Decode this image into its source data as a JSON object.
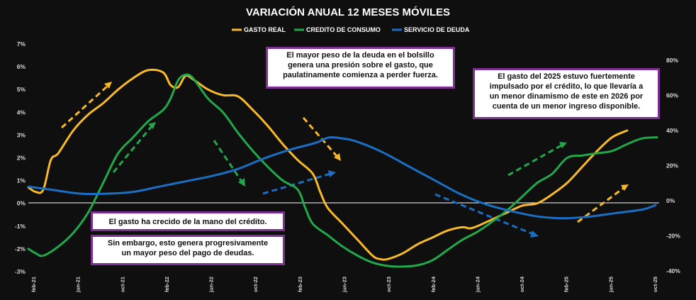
{
  "chart_data": {
    "type": "line",
    "title": "VARIACIÓN ANUAL 12 MESES MÓVILES",
    "legend": [
      {
        "name": "GASTO REAL",
        "color": "#f7b928"
      },
      {
        "name": "CREDITO DE CONSUMO",
        "color": "#22a84a"
      },
      {
        "name": "SERVICIO DE DEUDA",
        "color": "#1a6fc4"
      }
    ],
    "legend_position": "top-center",
    "x_ticks": [
      "feb-21",
      "jun-21",
      "oct-21",
      "feb-22",
      "jun-22",
      "oct-22",
      "feb-23",
      "jun-23",
      "oct-23",
      "feb-24",
      "jun-24",
      "oct-24",
      "feb-25",
      "jun-25",
      "oct-25"
    ],
    "x_months": 57,
    "y_left": {
      "ticks": [
        "7%",
        "6%",
        "5%",
        "4%",
        "3%",
        "2%",
        "1%",
        "0%",
        "-1%",
        "-2%",
        "-3%"
      ],
      "range": [
        -3,
        7
      ]
    },
    "y_right": {
      "ticks": [
        "80%",
        "60%",
        "40%",
        "20%",
        "0%",
        "-20%",
        "-40%"
      ],
      "range": [
        -40,
        80
      ]
    },
    "series": [
      {
        "name": "GASTO REAL",
        "axis": "left",
        "points": [
          [
            0,
            0.7
          ],
          [
            1,
            0.5
          ],
          [
            2,
            0.6
          ],
          [
            3,
            1.9
          ],
          [
            4,
            2.2
          ],
          [
            6,
            3.2
          ],
          [
            8,
            3.9
          ],
          [
            10,
            4.4
          ],
          [
            12,
            5.0
          ],
          [
            14,
            5.5
          ],
          [
            16,
            5.85
          ],
          [
            18,
            5.75
          ],
          [
            19,
            5.2
          ],
          [
            20,
            5.1
          ],
          [
            21,
            5.6
          ],
          [
            22,
            5.45
          ],
          [
            24,
            5.0
          ],
          [
            26,
            4.75
          ],
          [
            28,
            4.7
          ],
          [
            30,
            4.1
          ],
          [
            32,
            3.4
          ],
          [
            34,
            2.6
          ],
          [
            36,
            1.9
          ],
          [
            38,
            1.3
          ],
          [
            39,
            0.5
          ],
          [
            40,
            -0.2
          ],
          [
            42,
            -0.9
          ],
          [
            44,
            -1.6
          ],
          [
            46,
            -2.3
          ],
          [
            47,
            -2.45
          ],
          [
            48,
            -2.45
          ],
          [
            50,
            -2.2
          ],
          [
            52,
            -1.8
          ],
          [
            54,
            -1.5
          ],
          [
            56,
            -1.2
          ],
          [
            58,
            -1.05
          ],
          [
            59,
            -1.1
          ],
          [
            60,
            -1.0
          ],
          [
            62,
            -0.7
          ],
          [
            64,
            -0.4
          ],
          [
            66,
            -0.1
          ],
          [
            68,
            0.0
          ],
          [
            70,
            0.4
          ],
          [
            72,
            0.9
          ],
          [
            74,
            1.6
          ],
          [
            76,
            2.3
          ],
          [
            78,
            2.9
          ],
          [
            80,
            3.2
          ]
        ]
      },
      {
        "name": "CREDITO DE CONSUMO",
        "axis": "left",
        "points": [
          [
            0,
            -2.0
          ],
          [
            1,
            -2.2
          ],
          [
            2,
            -2.3
          ],
          [
            4,
            -1.9
          ],
          [
            6,
            -1.3
          ],
          [
            8,
            -0.4
          ],
          [
            10,
            0.9
          ],
          [
            12,
            2.2
          ],
          [
            14,
            2.9
          ],
          [
            16,
            3.6
          ],
          [
            18,
            4.1
          ],
          [
            19,
            4.6
          ],
          [
            20,
            5.4
          ],
          [
            21,
            5.65
          ],
          [
            22,
            5.5
          ],
          [
            24,
            4.6
          ],
          [
            26,
            4.0
          ],
          [
            28,
            3.1
          ],
          [
            30,
            2.3
          ],
          [
            32,
            1.6
          ],
          [
            34,
            1.0
          ],
          [
            36,
            0.6
          ],
          [
            37,
            -0.2
          ],
          [
            38,
            -0.9
          ],
          [
            40,
            -1.4
          ],
          [
            42,
            -1.9
          ],
          [
            44,
            -2.3
          ],
          [
            46,
            -2.6
          ],
          [
            48,
            -2.75
          ],
          [
            50,
            -2.78
          ],
          [
            52,
            -2.72
          ],
          [
            54,
            -2.5
          ],
          [
            56,
            -2.05
          ],
          [
            58,
            -1.6
          ],
          [
            60,
            -1.25
          ],
          [
            62,
            -0.8
          ],
          [
            64,
            -0.3
          ],
          [
            66,
            0.3
          ],
          [
            68,
            0.9
          ],
          [
            70,
            1.3
          ],
          [
            72,
            2.0
          ],
          [
            74,
            2.1
          ],
          [
            76,
            2.2
          ],
          [
            78,
            2.3
          ],
          [
            80,
            2.6
          ],
          [
            82,
            2.85
          ],
          [
            84,
            2.9
          ]
        ]
      },
      {
        "name": "SERVICIO DE DEUDA",
        "axis": "right",
        "points": [
          [
            0,
            8
          ],
          [
            4,
            6
          ],
          [
            8,
            4
          ],
          [
            12,
            4
          ],
          [
            16,
            5
          ],
          [
            20,
            8
          ],
          [
            24,
            11
          ],
          [
            28,
            14
          ],
          [
            32,
            18
          ],
          [
            36,
            24
          ],
          [
            40,
            29
          ],
          [
            44,
            33
          ],
          [
            46,
            36
          ],
          [
            48,
            35.5
          ],
          [
            50,
            34
          ],
          [
            54,
            28
          ],
          [
            58,
            20
          ],
          [
            62,
            12
          ],
          [
            66,
            4
          ],
          [
            70,
            -2
          ],
          [
            74,
            -6
          ],
          [
            78,
            -9
          ],
          [
            82,
            -10
          ],
          [
            86,
            -9
          ],
          [
            90,
            -7
          ],
          [
            94,
            -5
          ],
          [
            96,
            -2.5
          ]
        ]
      }
    ],
    "annotations": [
      {
        "id": "deuda",
        "text": "El mayor peso de la deuda en el bolsillo\ngenera una presión sobre el gasto, que\npaulatinamente comienza a perder fuerza."
      },
      {
        "id": "2025",
        "text": "El gasto del 2025 estuvo fuertemente\nimpulsado por el crédito, lo que llevaría a\nun menor dinamismo de este en 2026 por\ncuenta de un menor ingreso disponible."
      },
      {
        "id": "credito",
        "text": "El gasto ha crecido de la mano del crédito."
      },
      {
        "id": "embargo",
        "text": "Sin embargo, esto genera progresivamente\nun mayor peso del pago de deudas."
      }
    ]
  }
}
